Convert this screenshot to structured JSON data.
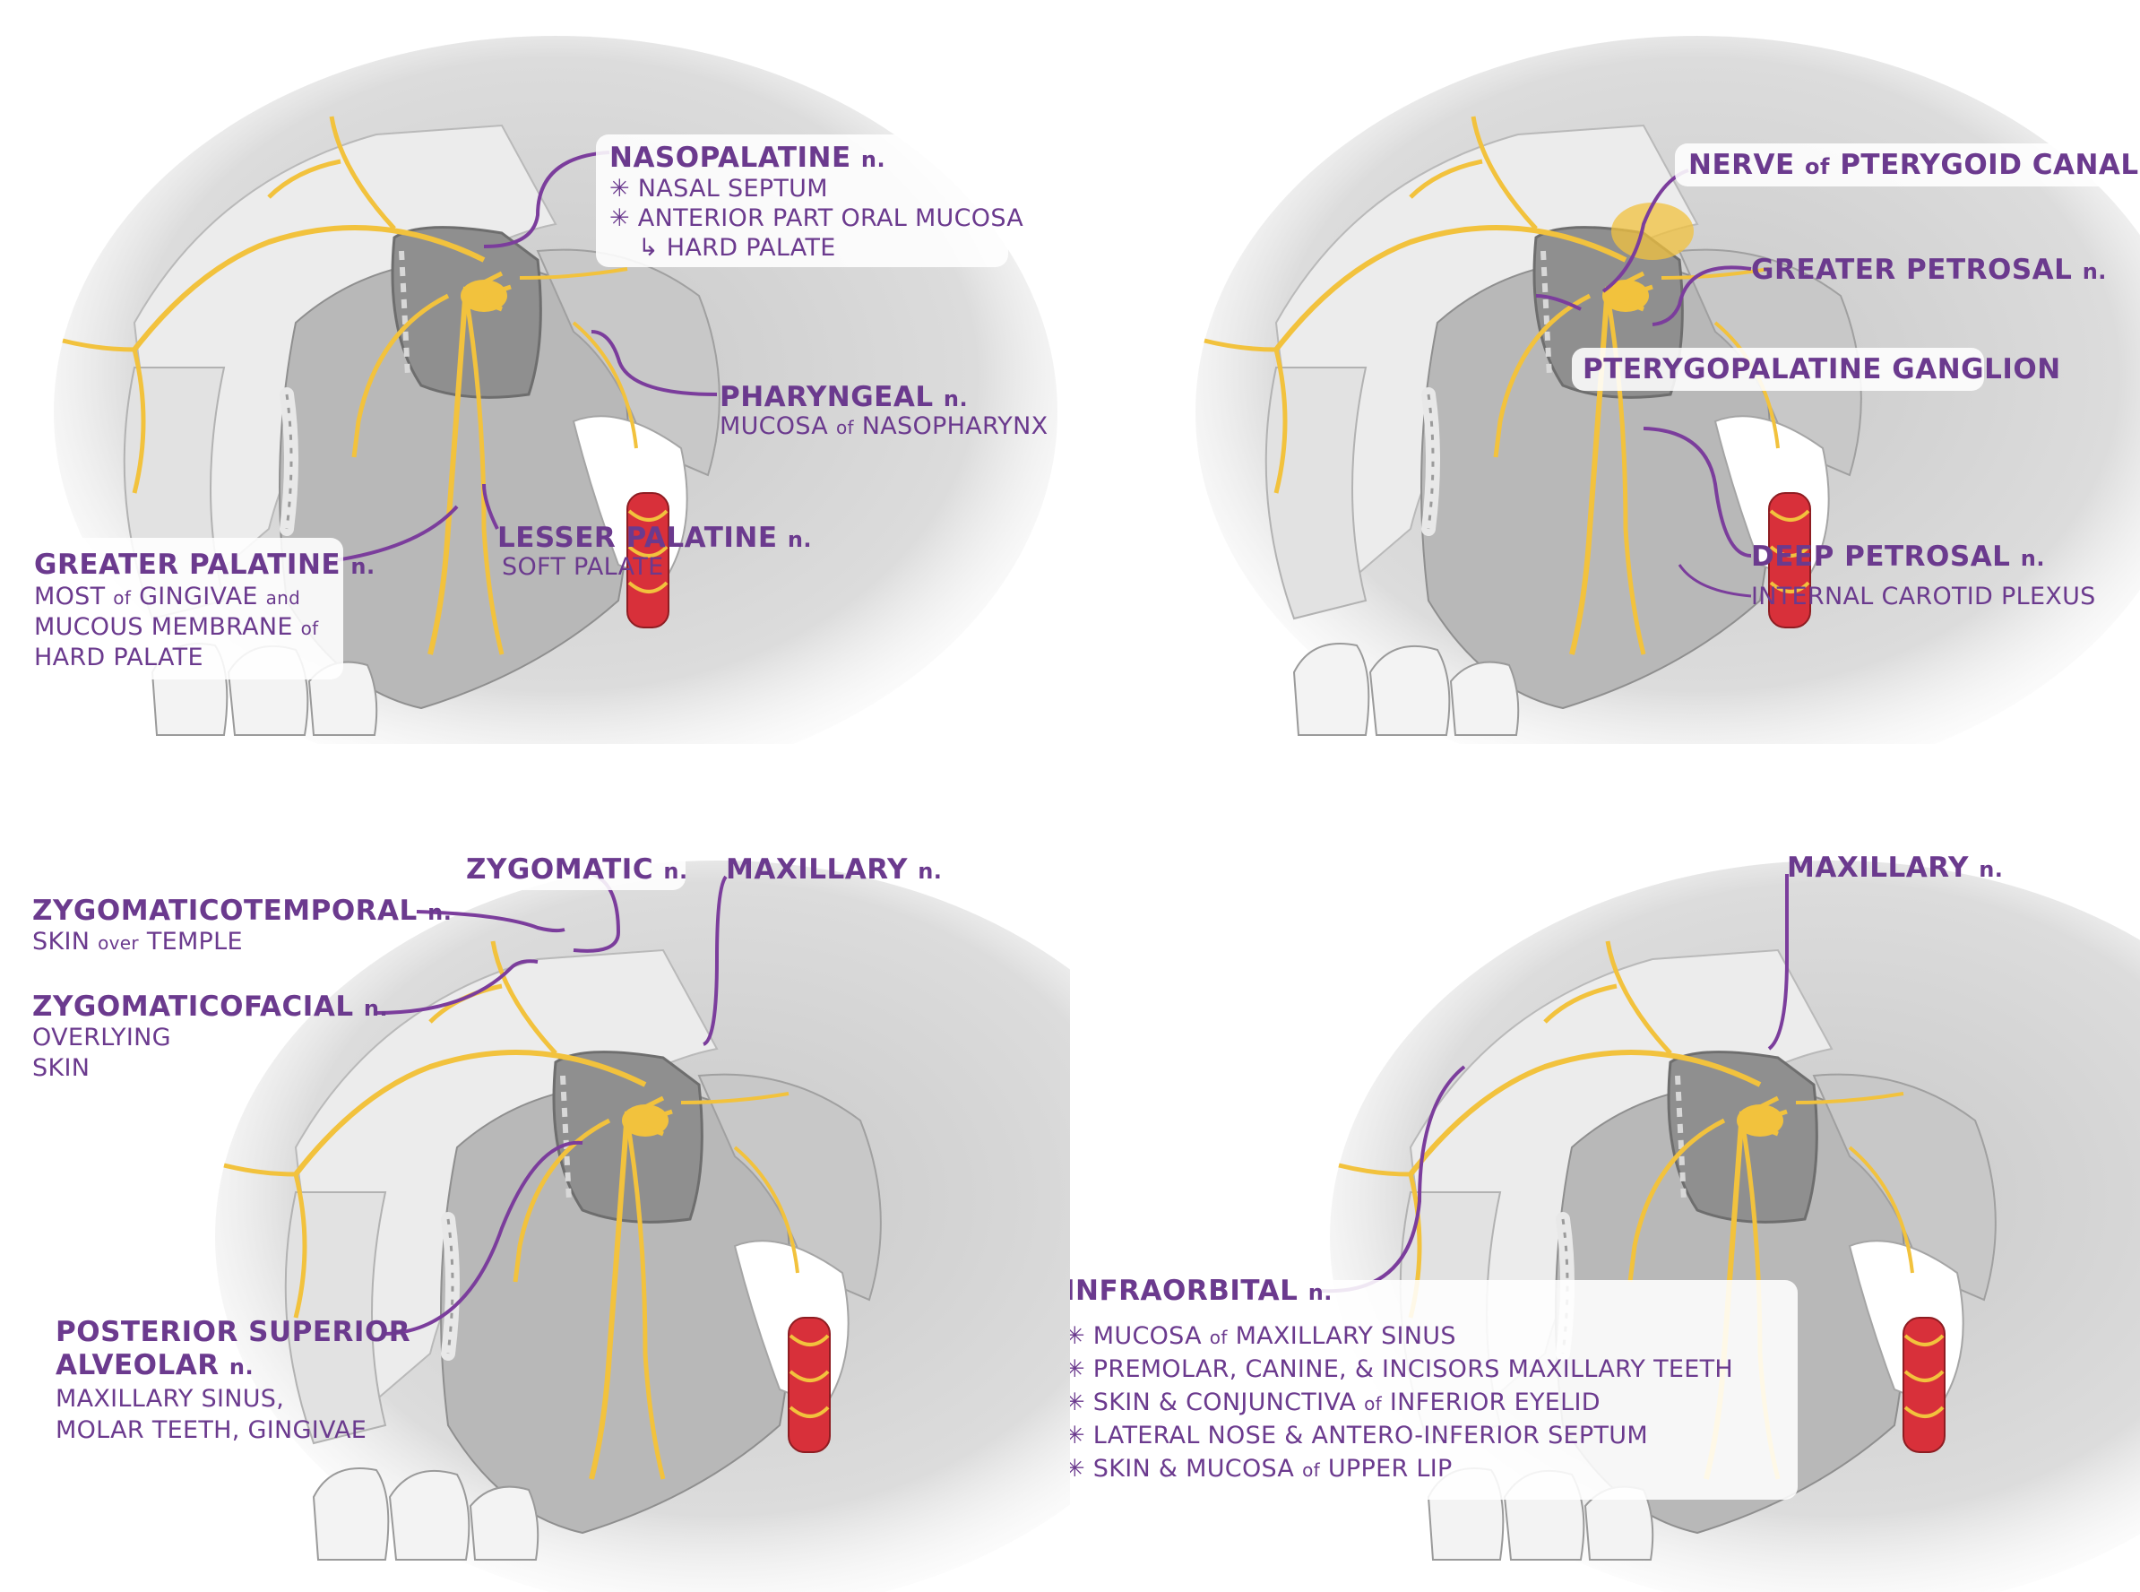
{
  "colors": {
    "label": "#6b3a8e",
    "nerve": "#f2c23d",
    "artery": "#d8303a",
    "bone_light": "#e6e6e6",
    "bone_mid": "#b4b4b4",
    "bone_dark": "#8e8e8e"
  },
  "panels": [
    {
      "id": "palatine-branches",
      "labels": {
        "nasopalatine": {
          "name": "NASOPALATINE",
          "suffix": "n.",
          "lines": [
            "✳ NASAL SEPTUM",
            "✳ ANTERIOR PART ORAL MUCOSA",
            "↳ HARD PALATE"
          ]
        },
        "pharyngeal": {
          "name": "PHARYNGEAL",
          "suffix": "n.",
          "desc_main": "MUCOSA",
          "desc_of": "of",
          "desc_end": "NASOPHARYNX"
        },
        "lesser_palatine": {
          "name": "LESSER PALATINE",
          "suffix": "n.",
          "desc": "SOFT PALATE"
        },
        "greater_palatine": {
          "name": "GREATER PALATINE",
          "suffix": "n.",
          "line1_a": "MOST",
          "line1_of": "of",
          "line1_b": "GINGIVAE",
          "line1_and": "and",
          "line2_a": "MUCOUS MEMBRANE",
          "line2_of": "of",
          "line3": "HARD PALATE"
        }
      }
    },
    {
      "id": "ganglion-roots",
      "labels": {
        "pterygoid_canal": {
          "prefix": "NERVE",
          "of": "of",
          "rest": "PTERYGOID CANAL"
        },
        "greater_petrosal": {
          "name": "GREATER PETROSAL",
          "suffix": "n."
        },
        "ganglion": {
          "name": "PTERYGOPALATINE GANGLION"
        },
        "deep_petrosal": {
          "name": "DEEP PETROSAL",
          "suffix": "n.",
          "desc": "INTERNAL CAROTID PLEXUS"
        }
      }
    },
    {
      "id": "zygomatic-branches",
      "labels": {
        "zygomatic": {
          "name": "ZYGOMATIC",
          "suffix": "n."
        },
        "maxillary": {
          "name": "MAXILLARY",
          "suffix": "n."
        },
        "zygomaticotemporal": {
          "name": "ZYGOMATICOTEMPORAL",
          "suffix": "n.",
          "desc_a": "SKIN",
          "desc_over": "over",
          "desc_b": "TEMPLE"
        },
        "zygomaticofacial": {
          "name": "ZYGOMATICOFACIAL",
          "suffix": "n.",
          "line1": "OVERLYING",
          "line2": "SKIN"
        },
        "posterior_superior_alveolar": {
          "line1": "POSTERIOR SUPERIOR",
          "line2": "ALVEOLAR",
          "suffix": "n.",
          "desc1": "MAXILLARY SINUS,",
          "desc2": "MOLAR TEETH, GINGIVAE"
        }
      }
    },
    {
      "id": "infraorbital",
      "labels": {
        "maxillary": {
          "name": "MAXILLARY",
          "suffix": "n."
        },
        "infraorbital": {
          "name": "INFRAORBITAL",
          "suffix": "n.",
          "item1_a": "✳ MUCOSA",
          "item1_of": "of",
          "item1_b": "MAXILLARY SINUS",
          "item2": "✳ PREMOLAR, CANINE, & INCISORS MAXILLARY TEETH",
          "item3_a": "✳ SKIN & CONJUNCTIVA",
          "item3_of": "of",
          "item3_b": "INFERIOR EYELID",
          "item4": "✳ LATERAL NOSE & ANTERO-INFERIOR SEPTUM",
          "item5_a": "✳ SKIN & MUCOSA",
          "item5_of": "of",
          "item5_b": "UPPER LIP"
        }
      }
    }
  ]
}
